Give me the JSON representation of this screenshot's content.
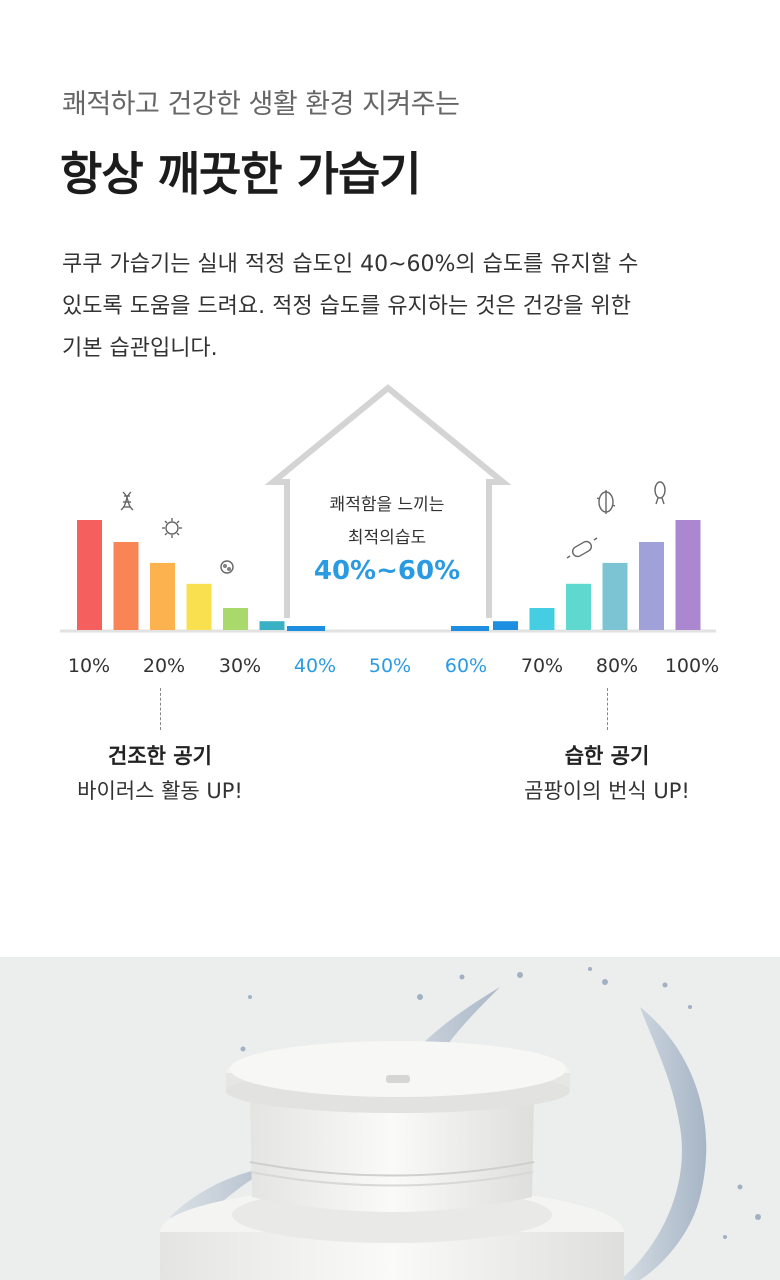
{
  "header": {
    "subtitle": "쾌적하고 건강한 생활 환경 지켜주는",
    "title": "항상 깨끗한 가습기"
  },
  "description": [
    "쿠쿠 가습기는 실내 적정 습도인 40~60%의 습도를 유지할 수",
    "있도록 도움을 드려요. 적정 습도를 유지하는 것은 건강을 위한",
    "기본 습관입니다."
  ],
  "house": {
    "line1": "쾌적함을 느끼는",
    "line2": "최적의습도",
    "range": "40%~60%"
  },
  "chart_data": {
    "type": "bar",
    "categories": [
      "10%",
      "20%",
      "30%",
      "40%",
      "50%",
      "60%",
      "70%",
      "80%",
      "100%"
    ],
    "highlight_range": [
      "40%",
      "60%"
    ],
    "dry_bars": [
      {
        "level": 1.0,
        "color": "#f55f5d"
      },
      {
        "level": 0.8,
        "color": "#f98556"
      },
      {
        "level": 0.61,
        "color": "#fbb24f"
      },
      {
        "level": 0.42,
        "color": "#f8e04f"
      },
      {
        "level": 0.2,
        "color": "#a8d96a"
      },
      {
        "level": 0.08,
        "color": "#3ab0c4"
      }
    ],
    "humid_bars": [
      {
        "level": 0.08,
        "color": "#1e8fe0"
      },
      {
        "level": 0.2,
        "color": "#45cde2"
      },
      {
        "level": 0.42,
        "color": "#5fd9cf"
      },
      {
        "level": 0.61,
        "color": "#7cc4d3"
      },
      {
        "level": 0.8,
        "color": "#a1a1d9"
      },
      {
        "level": 1.0,
        "color": "#ab87cf"
      }
    ],
    "label_color_normal": "#333333",
    "label_color_highlight": "#2a9be3"
  },
  "zones": {
    "dry": {
      "title": "건조한 공기",
      "desc": "바이러스 활동 UP!"
    },
    "humid": {
      "title": "습한 공기",
      "desc": "곰팡이의 번식 UP!"
    }
  },
  "colors": {
    "accent": "#2a9be3",
    "house_outline": "#d4d4d4",
    "product_bg": "#eceded"
  }
}
